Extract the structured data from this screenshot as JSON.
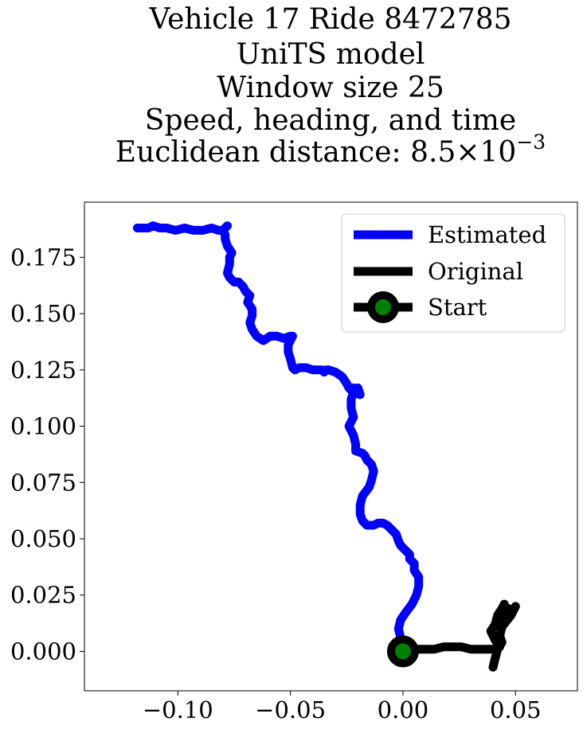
{
  "chart_data": {
    "type": "line",
    "title_lines": [
      "Vehicle 17 Ride 8472785",
      "UniTS model",
      "Window size 25",
      "Speed, heading, and time"
    ],
    "title_metric_prefix": "Euclidean distance: ",
    "title_metric_mantissa": "8.5",
    "title_metric_times": "×",
    "title_metric_base": "10",
    "title_metric_exponent": "−3",
    "xlim": [
      -0.1415,
      0.0775
    ],
    "ylim": [
      -0.0175,
      0.1995
    ],
    "xticks": [
      {
        "value": -0.1,
        "label": "−0.10"
      },
      {
        "value": -0.05,
        "label": "−0.05"
      },
      {
        "value": 0.0,
        "label": "0.00"
      },
      {
        "value": 0.05,
        "label": "0.05"
      }
    ],
    "yticks": [
      {
        "value": 0.0,
        "label": "0.000"
      },
      {
        "value": 0.025,
        "label": "0.025"
      },
      {
        "value": 0.05,
        "label": "0.050"
      },
      {
        "value": 0.075,
        "label": "0.075"
      },
      {
        "value": 0.1,
        "label": "0.100"
      },
      {
        "value": 0.125,
        "label": "0.125"
      },
      {
        "value": 0.15,
        "label": "0.150"
      },
      {
        "value": 0.175,
        "label": "0.175"
      }
    ],
    "grid": false,
    "legend_position": "top-right",
    "legend": [
      {
        "label": "Estimated",
        "color": "#0000ff",
        "marker": "none"
      },
      {
        "label": "Original",
        "color": "#000000",
        "marker": "none"
      },
      {
        "label": "Start",
        "color": "#000000",
        "marker": "circle",
        "marker_face": "#008000"
      }
    ],
    "series": [
      {
        "name": "Estimated",
        "color": "#0000ff",
        "x": [
          0.0,
          -0.001,
          -0.002,
          -0.001,
          0.001,
          0.004,
          0.006,
          0.007,
          0.007,
          0.005,
          0.005,
          0.003,
          0.003,
          0.001,
          -0.001,
          -0.002,
          -0.003,
          -0.005,
          -0.007,
          -0.009,
          -0.011,
          -0.013,
          -0.016,
          -0.018,
          -0.019,
          -0.019,
          -0.018,
          -0.015,
          -0.014,
          -0.013,
          -0.014,
          -0.016,
          -0.017,
          -0.018,
          -0.021,
          -0.021,
          -0.022,
          -0.024,
          -0.022,
          -0.023,
          -0.023,
          -0.022,
          -0.023,
          -0.022,
          -0.021,
          -0.02,
          -0.019,
          -0.019,
          -0.022,
          -0.024,
          -0.025,
          -0.027,
          -0.03,
          -0.033,
          -0.034,
          -0.035,
          -0.036,
          -0.038,
          -0.04,
          -0.043,
          -0.046,
          -0.048,
          -0.049,
          -0.05,
          -0.051,
          -0.051,
          -0.05,
          -0.049,
          -0.05,
          -0.053,
          -0.056,
          -0.059,
          -0.062,
          -0.065,
          -0.067,
          -0.068,
          -0.067,
          -0.067,
          -0.069,
          -0.068,
          -0.07,
          -0.071,
          -0.073,
          -0.075,
          -0.077,
          -0.078,
          -0.077,
          -0.077,
          -0.076,
          -0.078,
          -0.079,
          -0.079,
          -0.08,
          -0.079,
          -0.078,
          -0.08,
          -0.082,
          -0.085,
          -0.089,
          -0.093,
          -0.097,
          -0.101,
          -0.105,
          -0.108,
          -0.111,
          -0.113,
          -0.115,
          -0.118
        ],
        "y": [
          0.002,
          0.006,
          0.01,
          0.014,
          0.017,
          0.021,
          0.025,
          0.029,
          0.033,
          0.036,
          0.039,
          0.041,
          0.043,
          0.045,
          0.047,
          0.049,
          0.052,
          0.054,
          0.056,
          0.057,
          0.057,
          0.056,
          0.056,
          0.058,
          0.061,
          0.065,
          0.069,
          0.073,
          0.076,
          0.08,
          0.083,
          0.085,
          0.087,
          0.088,
          0.089,
          0.092,
          0.096,
          0.1,
          0.104,
          0.108,
          0.112,
          0.115,
          0.117,
          0.117,
          0.116,
          0.117,
          0.114,
          0.114,
          0.115,
          0.117,
          0.119,
          0.122,
          0.124,
          0.125,
          0.125,
          0.124,
          0.125,
          0.125,
          0.125,
          0.126,
          0.126,
          0.125,
          0.126,
          0.13,
          0.133,
          0.136,
          0.138,
          0.14,
          0.14,
          0.139,
          0.14,
          0.14,
          0.138,
          0.14,
          0.143,
          0.146,
          0.149,
          0.152,
          0.155,
          0.158,
          0.16,
          0.162,
          0.164,
          0.164,
          0.166,
          0.168,
          0.172,
          0.175,
          0.177,
          0.18,
          0.183,
          0.185,
          0.187,
          0.188,
          0.189,
          0.187,
          0.187,
          0.188,
          0.187,
          0.187,
          0.188,
          0.187,
          0.188,
          0.188,
          0.189,
          0.188,
          0.188,
          0.188
        ]
      },
      {
        "name": "Original",
        "color": "#000000",
        "x": [
          0.0,
          0.003,
          0.006,
          0.01,
          0.014,
          0.018,
          0.022,
          0.026,
          0.03,
          0.034,
          0.037,
          0.04,
          0.042,
          0.043,
          0.041,
          0.039,
          0.041,
          0.042,
          0.044,
          0.045,
          0.043,
          0.044,
          0.046,
          0.047,
          0.049,
          0.05,
          0.048,
          0.044,
          0.043,
          0.044,
          0.042,
          0.041,
          0.04
        ],
        "y": [
          0.0,
          0.0,
          0.001,
          0.001,
          0.001,
          0.002,
          0.002,
          0.002,
          0.001,
          0.001,
          0.001,
          0.001,
          0.001,
          0.002,
          0.005,
          0.009,
          0.012,
          0.016,
          0.019,
          0.021,
          0.017,
          0.013,
          0.016,
          0.019,
          0.018,
          0.02,
          0.016,
          0.011,
          0.007,
          0.004,
          0.001,
          -0.003,
          -0.007
        ]
      }
    ],
    "start_point": {
      "x": 0.0,
      "y": 0.0
    }
  }
}
